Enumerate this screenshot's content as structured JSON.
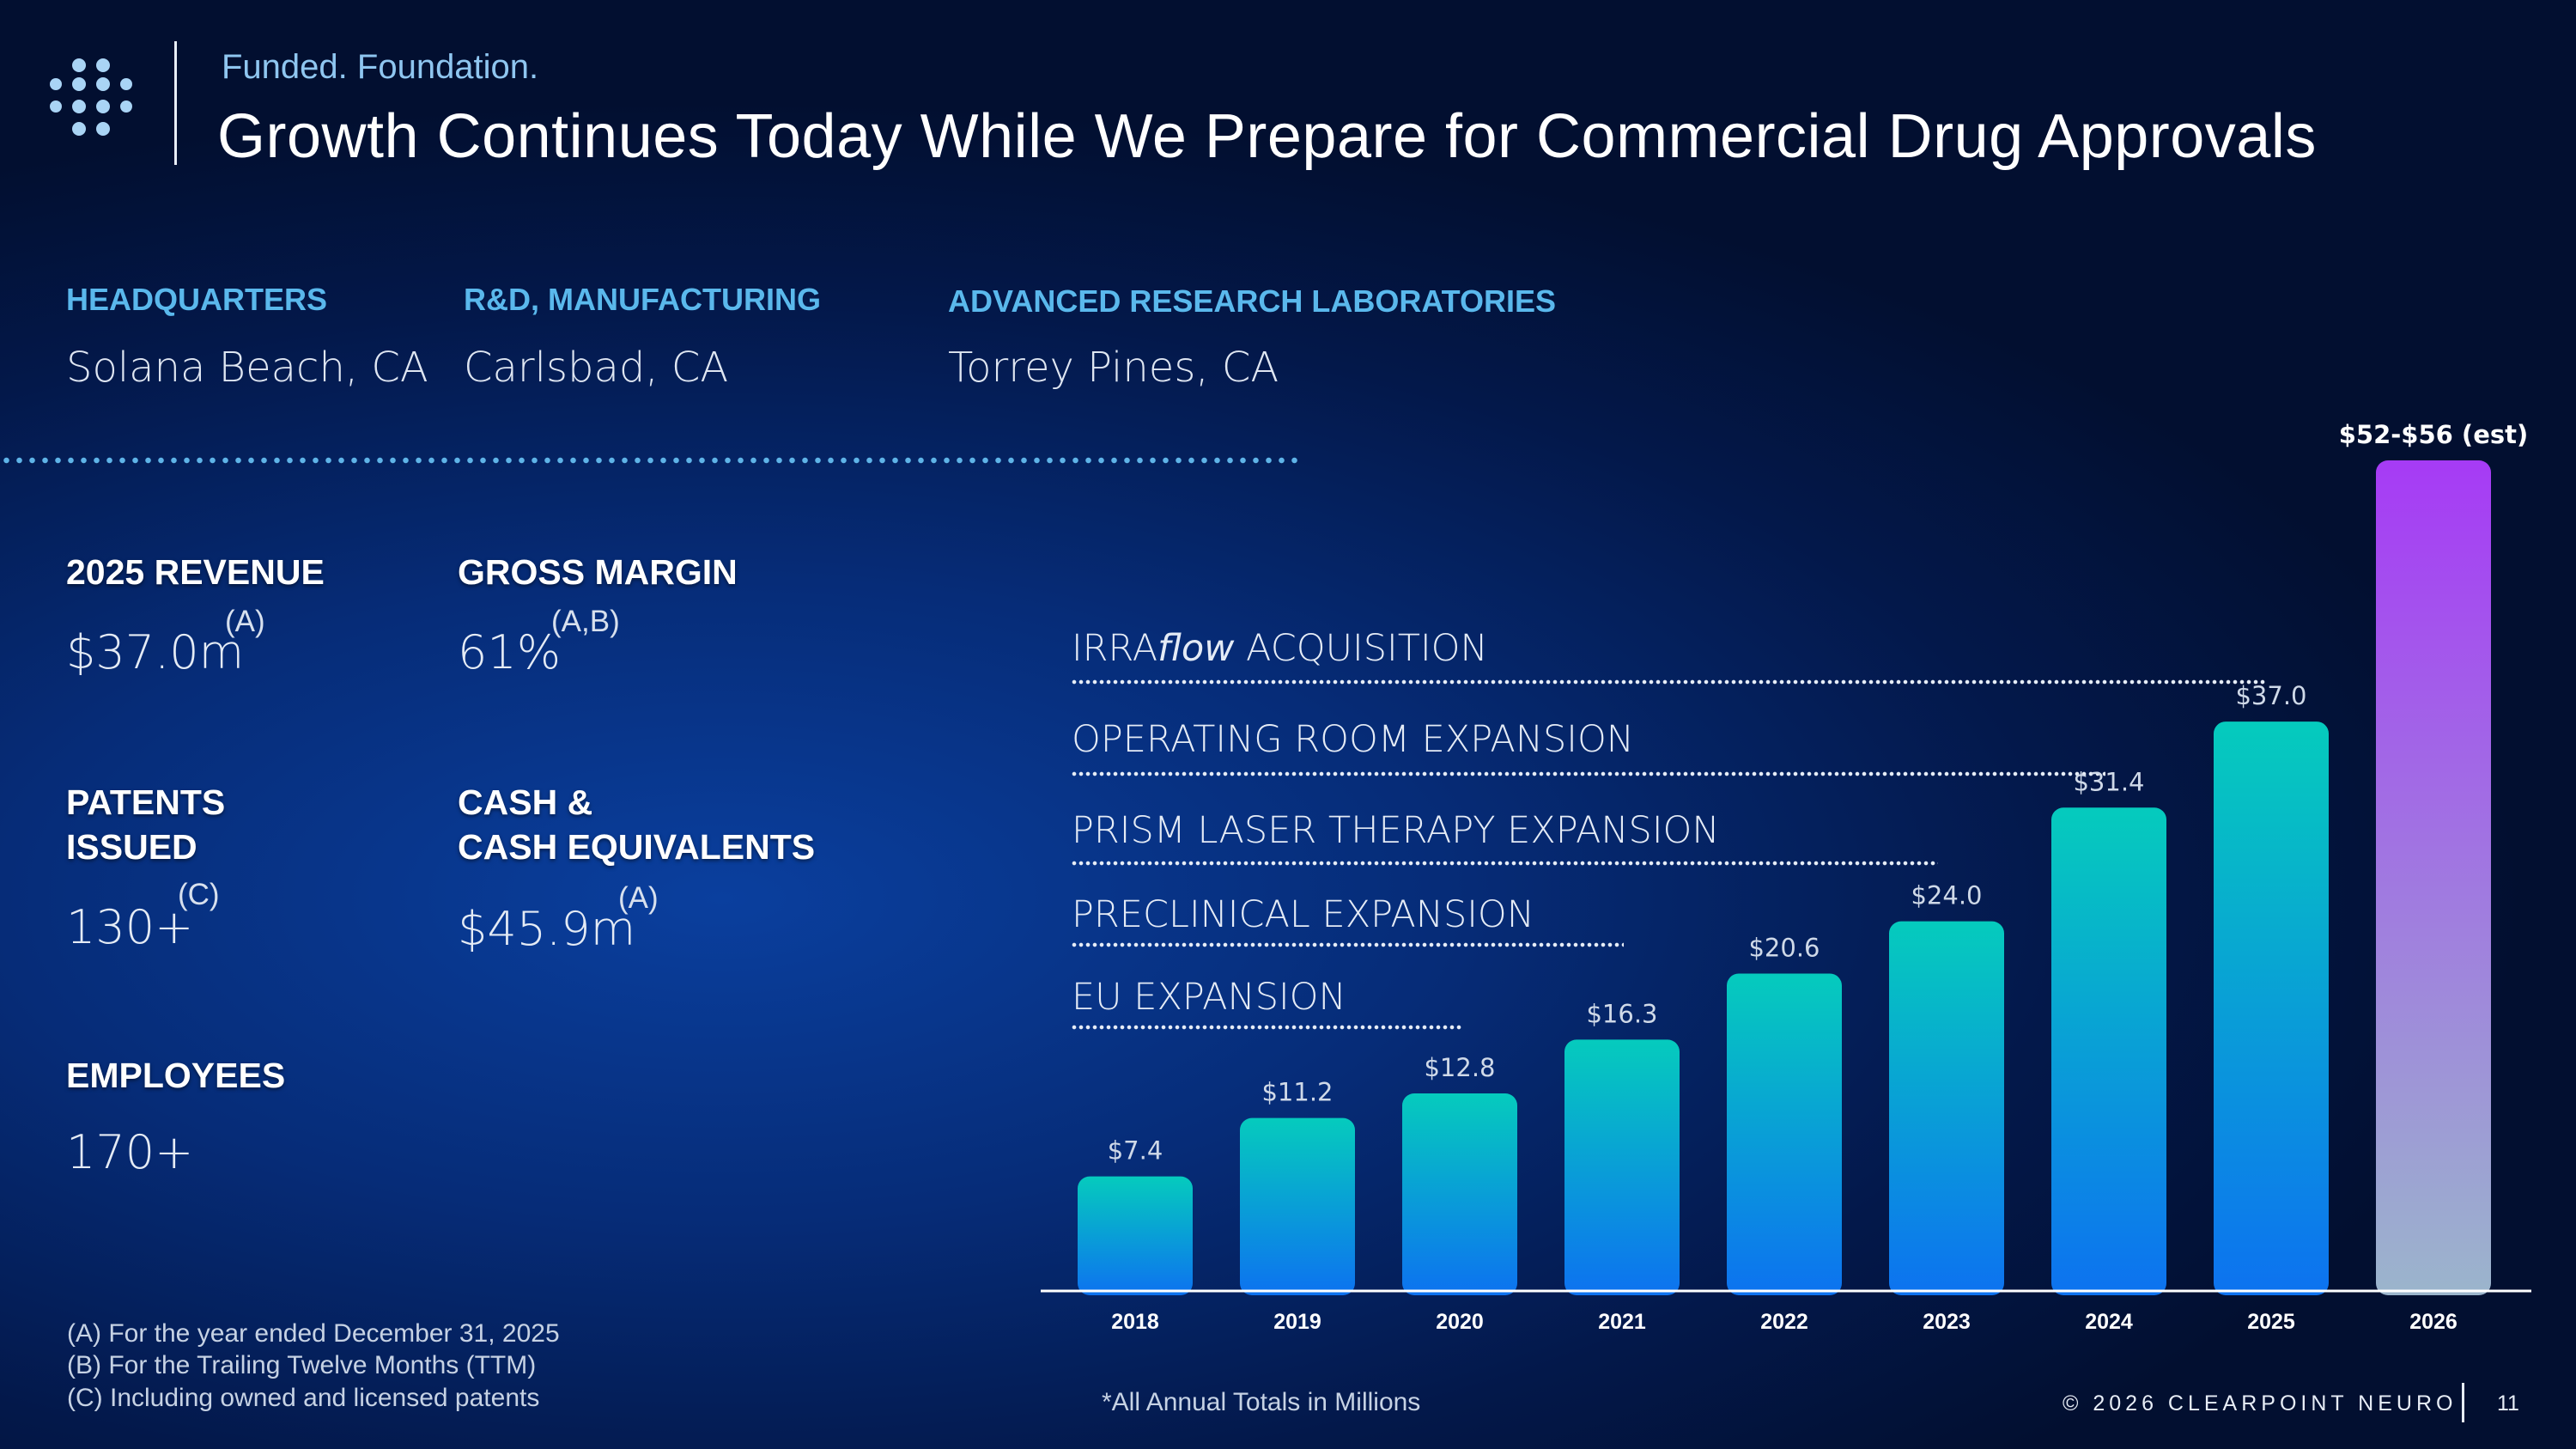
{
  "header": {
    "subtitle": "Funded. Foundation.",
    "title": "Growth Continues Today While We Prepare for Commercial Drug Approvals",
    "logo_icon": "dot-grid-logo-icon"
  },
  "locations": [
    {
      "label": "HEADQUARTERS",
      "value": "Solana Beach, CA"
    },
    {
      "label": "R&D, MANUFACTURING",
      "value": "Carlsbad, CA"
    },
    {
      "label": "ADVANCED RESEARCH LABORATORIES",
      "value": "Torrey Pines, CA"
    }
  ],
  "stats": {
    "revenue": {
      "label": "2025 REVENUE",
      "value": "$37.0m",
      "note": "(A)"
    },
    "gross_margin": {
      "label": "GROSS MARGIN",
      "value": "61%",
      "note": "(A,B)"
    },
    "patents": {
      "label_line1": "PATENTS",
      "label_line2": "ISSUED",
      "value": "130+",
      "note": "(C)"
    },
    "cash": {
      "label_line1": "CASH &",
      "label_line2": "CASH EQUIVALENTS",
      "value": "$45.9m",
      "note": "(A)"
    },
    "employees": {
      "label": "EMPLOYEES",
      "value": "170+"
    }
  },
  "milestones": [
    {
      "prefix": "IRRA",
      "italic": "flow",
      "suffix": " ACQUISITION"
    },
    {
      "prefix": "OPERATING ROOM EXPANSION",
      "italic": "",
      "suffix": ""
    },
    {
      "prefix": "PRISM LASER THERAPY EXPANSION",
      "italic": "",
      "suffix": ""
    },
    {
      "prefix": "PRECLINICAL EXPANSION",
      "italic": "",
      "suffix": ""
    },
    {
      "prefix": "EU EXPANSION",
      "italic": "",
      "suffix": ""
    }
  ],
  "chart_data": {
    "type": "bar",
    "categories": [
      "2018",
      "2019",
      "2020",
      "2021",
      "2022",
      "2023",
      "2024",
      "2025",
      "2026"
    ],
    "values": [
      7.4,
      11.2,
      12.8,
      16.3,
      20.6,
      24.0,
      31.4,
      37.0,
      54
    ],
    "estimate_range": [
      52,
      56
    ],
    "data_labels": [
      "$7.4",
      "$11.2",
      "$12.8",
      "$16.3",
      "$20.6",
      "$24.0",
      "$31.4",
      "$37.0",
      "$52-$56 (est)"
    ],
    "ylim": [
      0,
      58
    ],
    "grid": false,
    "colors": {
      "bar_top": "#05cbbd",
      "bar_bottom": "#0d72f0",
      "est_top": "#a63bf5",
      "est_bottom": "#9bb5cc",
      "axis": "#ffffff"
    }
  },
  "footnotes": {
    "a": "(A)  For the year ended December 31, 2025",
    "b": "(B)  For the Trailing Twelve Months (TTM)",
    "c": "(C)  Including owned and licensed patents",
    "all_annual": "*All Annual Totals in Millions"
  },
  "footer": {
    "copyright": "© 2026 CLEARPOINT NEURO",
    "page_number": "11"
  }
}
